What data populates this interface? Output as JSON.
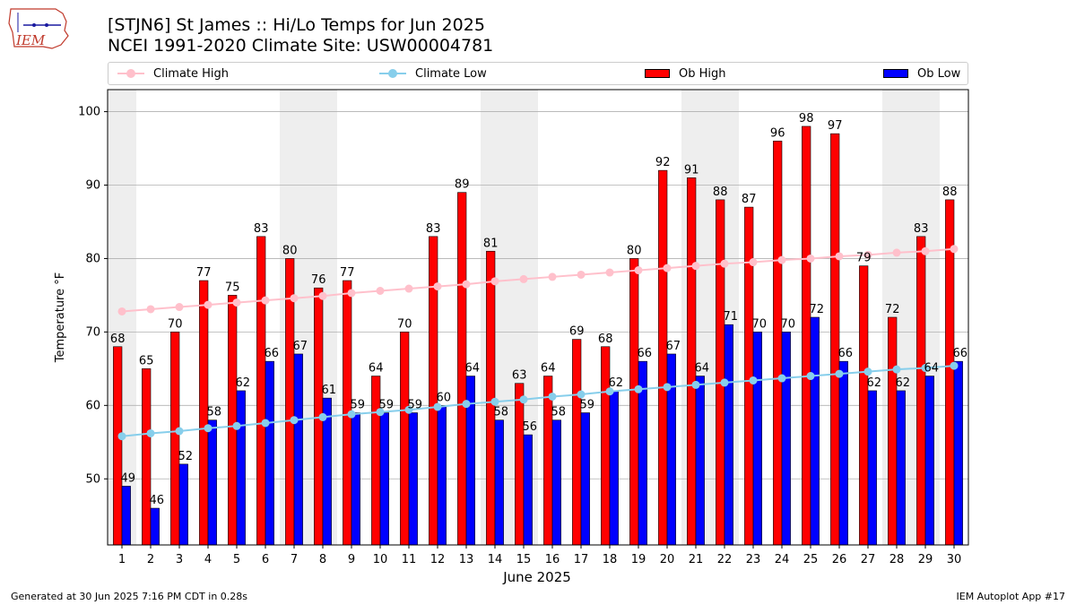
{
  "header": {
    "title_line1": "[STJN6] St James :: Hi/Lo Temps for Jun 2025",
    "title_line2": "NCEI 1991-2020 Climate Site: USW00004781",
    "logo_text": "IEM"
  },
  "legend": {
    "climate_high": "Climate High",
    "climate_low": "Climate Low",
    "ob_high": "Ob High",
    "ob_low": "Ob Low"
  },
  "footer": {
    "left": "Generated at 30 Jun 2025 7:16 PM CDT in 0.28s",
    "right": "IEM Autoplot App #17"
  },
  "colors": {
    "ob_high": "#ff0000",
    "ob_low": "#0000ff",
    "climate_high": "#ffc0cb",
    "climate_low": "#87ceeb",
    "weekend_band": "#eeeeee",
    "grid": "#b0b0b0"
  },
  "chart_data": {
    "type": "bar",
    "title": "[STJN6] St James :: Hi/Lo Temps for Jun 2025",
    "xlabel": "June 2025",
    "ylabel": "Temperature °F",
    "ylim": [
      41,
      103
    ],
    "yticks": [
      50,
      60,
      70,
      80,
      90,
      100
    ],
    "grid": true,
    "legend_position": "top",
    "categories": [
      "1",
      "2",
      "3",
      "4",
      "5",
      "6",
      "7",
      "8",
      "9",
      "10",
      "11",
      "12",
      "13",
      "14",
      "15",
      "16",
      "17",
      "18",
      "19",
      "20",
      "21",
      "22",
      "23",
      "24",
      "25",
      "26",
      "27",
      "28",
      "29",
      "30"
    ],
    "shaded_days": [
      1,
      7,
      8,
      14,
      15,
      21,
      22,
      28,
      29
    ],
    "series": [
      {
        "name": "Ob High",
        "kind": "bar",
        "values": [
          68,
          65,
          70,
          77,
          75,
          83,
          80,
          76,
          77,
          64,
          70,
          83,
          89,
          81,
          63,
          64,
          69,
          68,
          80,
          92,
          91,
          88,
          87,
          96,
          98,
          97,
          79,
          72,
          83,
          88
        ]
      },
      {
        "name": "Ob Low",
        "kind": "bar",
        "values": [
          49,
          46,
          52,
          58,
          62,
          66,
          67,
          61,
          59,
          59,
          59,
          60,
          64,
          58,
          56,
          58,
          59,
          62,
          66,
          67,
          64,
          71,
          70,
          70,
          72,
          66,
          62,
          62,
          64,
          66
        ]
      },
      {
        "name": "Climate High",
        "kind": "line",
        "values": [
          72.8,
          73.1,
          73.4,
          73.7,
          74.0,
          74.3,
          74.6,
          74.9,
          75.3,
          75.6,
          75.9,
          76.2,
          76.5,
          76.9,
          77.2,
          77.5,
          77.8,
          78.1,
          78.4,
          78.7,
          79.0,
          79.3,
          79.5,
          79.8,
          80.0,
          80.3,
          80.5,
          80.8,
          81.0,
          81.3
        ]
      },
      {
        "name": "Climate Low",
        "kind": "line",
        "values": [
          55.8,
          56.2,
          56.5,
          56.9,
          57.2,
          57.6,
          58.0,
          58.4,
          58.8,
          59.1,
          59.4,
          59.8,
          60.2,
          60.5,
          60.8,
          61.2,
          61.5,
          61.9,
          62.2,
          62.5,
          62.8,
          63.1,
          63.4,
          63.7,
          64.0,
          64.3,
          64.6,
          64.9,
          65.1,
          65.4
        ]
      }
    ]
  }
}
